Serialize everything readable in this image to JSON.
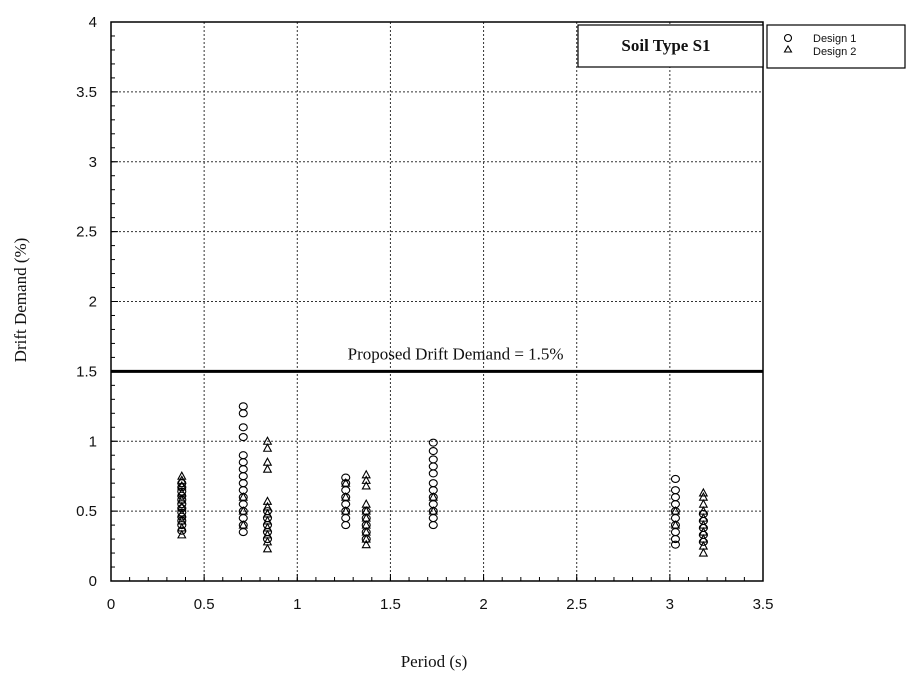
{
  "chart_data": {
    "type": "scatter",
    "title": "",
    "xlabel": "Period (s)",
    "ylabel": "Drift Demand (%)",
    "xlim": [
      0,
      3.5
    ],
    "ylim": [
      0,
      4
    ],
    "xticks": [
      "0",
      "0.5",
      "1",
      "1.5",
      "2",
      "2.5",
      "3",
      "3.5"
    ],
    "yticks": [
      "0",
      "0.5",
      "1",
      "1.5",
      "2",
      "2.5",
      "3",
      "3.5",
      "4"
    ],
    "grid": true,
    "legend_position": "outside-top-right",
    "box_label": "Soil Type S1",
    "reference_line": {
      "y": 1.5,
      "label": "Proposed Drift Demand = 1.5%"
    },
    "series": [
      {
        "name": "Design 1",
        "marker": "circle",
        "points": [
          [
            0.38,
            0.36
          ],
          [
            0.38,
            0.4
          ],
          [
            0.38,
            0.43
          ],
          [
            0.38,
            0.46
          ],
          [
            0.38,
            0.49
          ],
          [
            0.38,
            0.52
          ],
          [
            0.38,
            0.55
          ],
          [
            0.38,
            0.58
          ],
          [
            0.38,
            0.61
          ],
          [
            0.38,
            0.64
          ],
          [
            0.38,
            0.67
          ],
          [
            0.38,
            0.7
          ],
          [
            0.71,
            0.35
          ],
          [
            0.71,
            0.4
          ],
          [
            0.71,
            0.45
          ],
          [
            0.71,
            0.5
          ],
          [
            0.71,
            0.55
          ],
          [
            0.71,
            0.6
          ],
          [
            0.71,
            0.65
          ],
          [
            0.71,
            0.7
          ],
          [
            0.71,
            0.75
          ],
          [
            0.71,
            0.8
          ],
          [
            0.71,
            0.85
          ],
          [
            0.71,
            0.9
          ],
          [
            0.71,
            1.03
          ],
          [
            0.71,
            1.1
          ],
          [
            0.71,
            1.2
          ],
          [
            0.71,
            1.25
          ],
          [
            0.84,
            0.3
          ],
          [
            0.84,
            0.35
          ],
          [
            0.84,
            0.4
          ],
          [
            0.84,
            0.45
          ],
          [
            0.84,
            0.5
          ],
          [
            1.26,
            0.4
          ],
          [
            1.26,
            0.45
          ],
          [
            1.26,
            0.5
          ],
          [
            1.26,
            0.55
          ],
          [
            1.26,
            0.6
          ],
          [
            1.26,
            0.65
          ],
          [
            1.26,
            0.7
          ],
          [
            1.26,
            0.74
          ],
          [
            1.37,
            0.3
          ],
          [
            1.37,
            0.35
          ],
          [
            1.37,
            0.4
          ],
          [
            1.37,
            0.45
          ],
          [
            1.37,
            0.5
          ],
          [
            1.73,
            0.4
          ],
          [
            1.73,
            0.45
          ],
          [
            1.73,
            0.5
          ],
          [
            1.73,
            0.55
          ],
          [
            1.73,
            0.6
          ],
          [
            1.73,
            0.65
          ],
          [
            1.73,
            0.7
          ],
          [
            1.73,
            0.77
          ],
          [
            1.73,
            0.82
          ],
          [
            1.73,
            0.87
          ],
          [
            1.73,
            0.93
          ],
          [
            1.73,
            0.99
          ],
          [
            3.03,
            0.26
          ],
          [
            3.03,
            0.3
          ],
          [
            3.03,
            0.35
          ],
          [
            3.03,
            0.4
          ],
          [
            3.03,
            0.45
          ],
          [
            3.03,
            0.5
          ],
          [
            3.03,
            0.55
          ],
          [
            3.03,
            0.6
          ],
          [
            3.03,
            0.65
          ],
          [
            3.03,
            0.73
          ],
          [
            3.18,
            0.28
          ],
          [
            3.18,
            0.33
          ],
          [
            3.18,
            0.38
          ],
          [
            3.18,
            0.43
          ],
          [
            3.18,
            0.48
          ]
        ]
      },
      {
        "name": "Design 2",
        "marker": "triangle",
        "points": [
          [
            0.38,
            0.33
          ],
          [
            0.38,
            0.38
          ],
          [
            0.38,
            0.43
          ],
          [
            0.38,
            0.48
          ],
          [
            0.38,
            0.53
          ],
          [
            0.38,
            0.58
          ],
          [
            0.38,
            0.63
          ],
          [
            0.38,
            0.68
          ],
          [
            0.38,
            0.72
          ],
          [
            0.38,
            0.75
          ],
          [
            0.71,
            0.4
          ],
          [
            0.71,
            0.5
          ],
          [
            0.71,
            0.6
          ],
          [
            0.84,
            0.23
          ],
          [
            0.84,
            0.28
          ],
          [
            0.84,
            0.33
          ],
          [
            0.84,
            0.38
          ],
          [
            0.84,
            0.43
          ],
          [
            0.84,
            0.48
          ],
          [
            0.84,
            0.53
          ],
          [
            0.84,
            0.57
          ],
          [
            0.84,
            0.8
          ],
          [
            0.84,
            0.85
          ],
          [
            0.84,
            0.95
          ],
          [
            0.84,
            1.0
          ],
          [
            1.26,
            0.5
          ],
          [
            1.26,
            0.6
          ],
          [
            1.26,
            0.7
          ],
          [
            1.37,
            0.26
          ],
          [
            1.37,
            0.3
          ],
          [
            1.37,
            0.35
          ],
          [
            1.37,
            0.4
          ],
          [
            1.37,
            0.45
          ],
          [
            1.37,
            0.5
          ],
          [
            1.37,
            0.55
          ],
          [
            1.37,
            0.68
          ],
          [
            1.37,
            0.72
          ],
          [
            1.37,
            0.76
          ],
          [
            1.73,
            0.5
          ],
          [
            1.73,
            0.6
          ],
          [
            3.03,
            0.4
          ],
          [
            3.03,
            0.5
          ],
          [
            3.18,
            0.2
          ],
          [
            3.18,
            0.25
          ],
          [
            3.18,
            0.3
          ],
          [
            3.18,
            0.35
          ],
          [
            3.18,
            0.4
          ],
          [
            3.18,
            0.45
          ],
          [
            3.18,
            0.5
          ],
          [
            3.18,
            0.55
          ],
          [
            3.18,
            0.6
          ],
          [
            3.18,
            0.63
          ]
        ]
      }
    ]
  }
}
